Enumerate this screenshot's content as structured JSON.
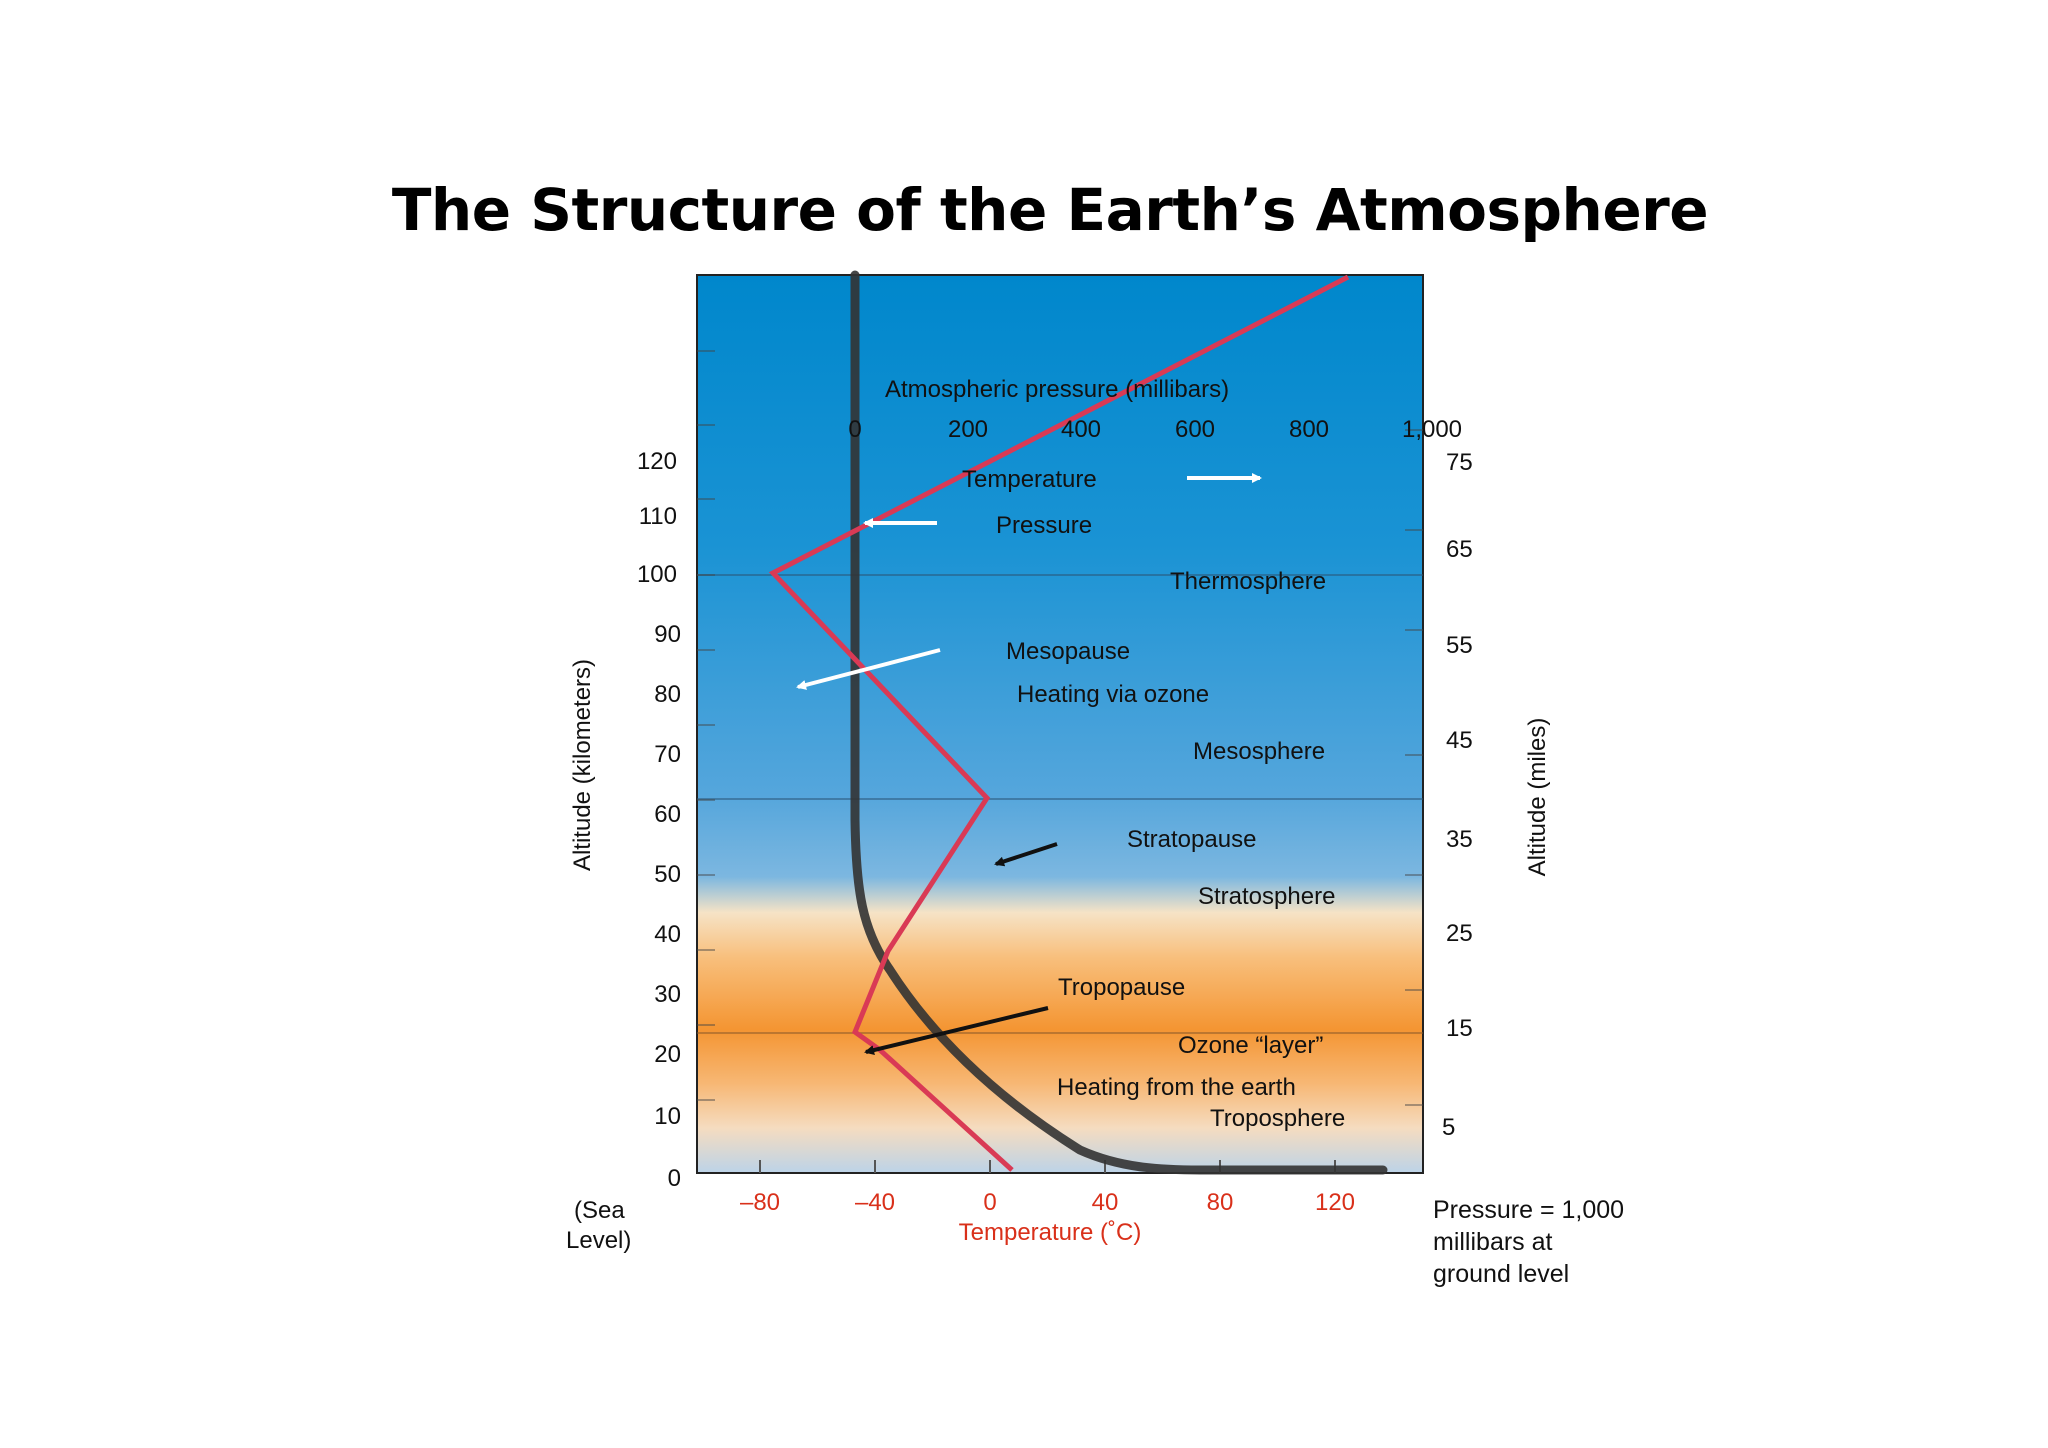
{
  "title": "The Structure of the Earth’s Atmosphere",
  "colors": {
    "sky_top": "#0087cc",
    "sky_mid": "#5aa8dd",
    "orange": "#f49532",
    "temperature_line": "#d93a55",
    "pressure_line": "#333333"
  },
  "axes": {
    "left_label": "Altitude (kilometers)",
    "right_label": "Altitude (miles)",
    "bottom_label": "Temperature (˚C)",
    "top_label": "Atmospheric pressure (millibars)",
    "left_ticks": [
      "120",
      "110",
      "100",
      "90",
      "80",
      "70",
      "60",
      "50",
      "40",
      "30",
      "20",
      "10",
      "0"
    ],
    "right_ticks": [
      "75",
      "65",
      "55",
      "45",
      "35",
      "25",
      "15",
      "5"
    ],
    "bottom_ticks": [
      "–80",
      "–40",
      "0",
      "40",
      "80",
      "120"
    ],
    "top_ticks": [
      "0",
      "200",
      "400",
      "600",
      "800",
      "1,000"
    ],
    "sea_level_line1": "(Sea",
    "sea_level_line2": "Level)"
  },
  "notes": {
    "pressure_line1": "Pressure = 1,000",
    "pressure_line2": "millibars at",
    "pressure_line3": "ground level"
  },
  "labels": {
    "temperature": "Temperature",
    "pressure": "Pressure",
    "thermosphere": "Thermosphere",
    "mesopause": "Mesopause",
    "heating_ozone": "Heating via ozone",
    "mesosphere": "Mesosphere",
    "stratopause": "Stratopause",
    "stratosphere": "Stratosphere",
    "tropopause": "Tropopause",
    "ozone_layer": "Ozone “layer”",
    "heating_earth": "Heating from the earth",
    "troposphere": "Troposphere"
  }
}
